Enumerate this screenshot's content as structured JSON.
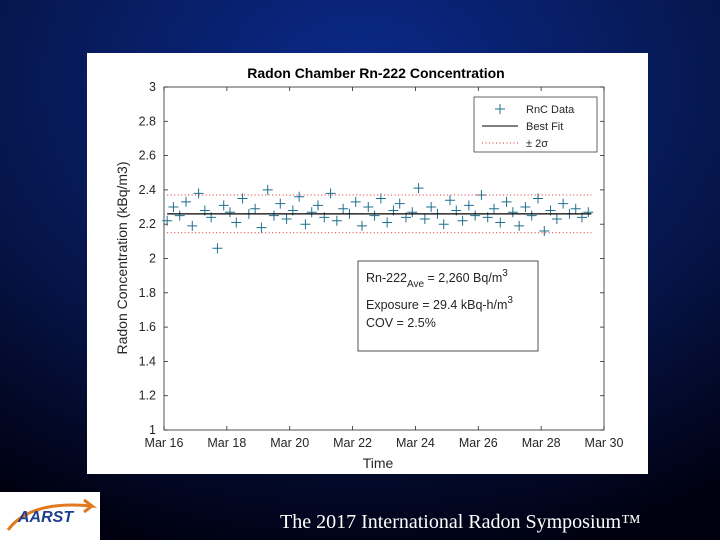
{
  "chart_data": {
    "type": "scatter",
    "title": "Radon Chamber Rn-222 Concentration",
    "x_label": "Time",
    "y_label": "Radon Concentration (kBq/m3)",
    "xlim": [
      16,
      30
    ],
    "xticks": [
      {
        "value": 16,
        "label": "Mar 16"
      },
      {
        "value": 18,
        "label": "Mar 18"
      },
      {
        "value": 20,
        "label": "Mar 20"
      },
      {
        "value": 22,
        "label": "Mar 22"
      },
      {
        "value": 24,
        "label": "Mar 24"
      },
      {
        "value": 26,
        "label": "Mar 26"
      },
      {
        "value": 28,
        "label": "Mar 28"
      },
      {
        "value": 30,
        "label": "Mar 30"
      }
    ],
    "ylim": [
      1,
      3
    ],
    "yticks": [
      1,
      1.2,
      1.4,
      1.6,
      1.8,
      2,
      2.2,
      2.4,
      2.6,
      2.8,
      3
    ],
    "grid": false,
    "legend_position": "upper right",
    "series": [
      {
        "name": "RnC Data",
        "kind": "markers",
        "color": "#1f6f8e",
        "x": [
          16.1,
          16.3,
          16.5,
          16.7,
          16.9,
          17.1,
          17.3,
          17.5,
          17.7,
          17.9,
          18.1,
          18.3,
          18.5,
          18.7,
          18.9,
          19.1,
          19.3,
          19.5,
          19.7,
          19.9,
          20.1,
          20.3,
          20.5,
          20.7,
          20.9,
          21.1,
          21.3,
          21.5,
          21.7,
          21.9,
          22.1,
          22.3,
          22.5,
          22.7,
          22.9,
          23.1,
          23.3,
          23.5,
          23.7,
          23.9,
          24.1,
          24.3,
          24.5,
          24.7,
          24.9,
          25.1,
          25.3,
          25.5,
          25.7,
          25.9,
          26.1,
          26.3,
          26.5,
          26.7,
          26.9,
          27.1,
          27.3,
          27.5,
          27.7,
          27.9,
          28.1,
          28.3,
          28.5,
          28.7,
          28.9,
          29.1,
          29.3,
          29.5
        ],
        "values": [
          2.22,
          2.3,
          2.25,
          2.33,
          2.19,
          2.38,
          2.28,
          2.24,
          2.06,
          2.31,
          2.27,
          2.21,
          2.35,
          2.26,
          2.29,
          2.18,
          2.4,
          2.25,
          2.32,
          2.23,
          2.28,
          2.36,
          2.2,
          2.27,
          2.31,
          2.24,
          2.38,
          2.22,
          2.29,
          2.26,
          2.33,
          2.19,
          2.3,
          2.25,
          2.35,
          2.21,
          2.28,
          2.32,
          2.24,
          2.27,
          2.41,
          2.23,
          2.3,
          2.26,
          2.2,
          2.34,
          2.28,
          2.22,
          2.31,
          2.25,
          2.37,
          2.24,
          2.29,
          2.21,
          2.33,
          2.27,
          2.19,
          2.3,
          2.25,
          2.35,
          2.16,
          2.28,
          2.23,
          2.32,
          2.26,
          2.29,
          2.24,
          2.27
        ]
      },
      {
        "name": "Best Fit",
        "kind": "line",
        "color": "#000000",
        "x": [
          16.1,
          29.6
        ],
        "values": [
          2.26,
          2.26
        ]
      },
      {
        "name": "± 2σ",
        "kind": "dotted",
        "color": "#d62728",
        "x": [
          16.1,
          29.6
        ],
        "values": [
          2.37,
          2.37
        ],
        "lower_values": [
          2.15,
          2.15
        ]
      }
    ],
    "annotation": {
      "line1": [
        "Rn-222",
        "Ave",
        " = 2,260 Bq/m",
        "3"
      ],
      "line2": [
        "Exposure = 29.4 kBq-h/m",
        "3"
      ],
      "line3": "COV = 2.5%"
    }
  },
  "footer": {
    "text": "The 2017 International Radon Symposium™",
    "logo": "AARST"
  }
}
